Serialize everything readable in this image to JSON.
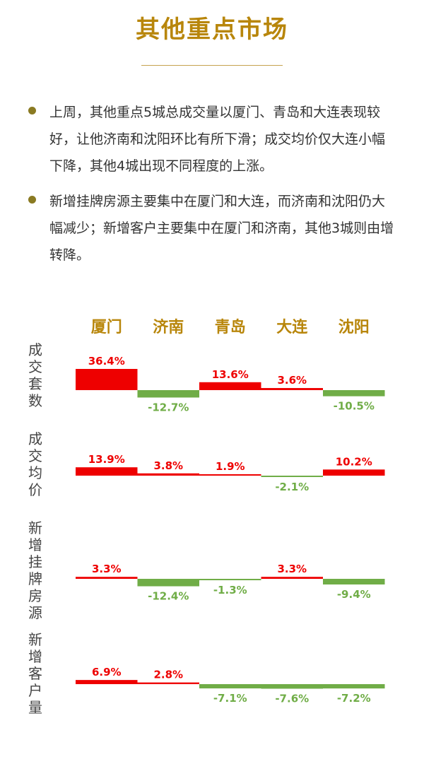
{
  "page": {
    "title": "其他重点市场",
    "bullets": [
      "上周，其他重点5城总成交量以厦门、青岛和大连表现较好，让他济南和沈阳环比有所下滑；成交均价仅大连小幅下降，其他4城出现不同程度的上涨。",
      "新增挂牌房源主要集中在厦门和大连，而济南和沈阳仍大幅减少；新增客户主要集中在厦门和济南，其他3城则由增转降。"
    ]
  },
  "colors": {
    "title": "#B8860B",
    "positive": "#EE0000",
    "negative": "#70AD47",
    "bullet_dot": "#8A7A22"
  },
  "chart_data": {
    "type": "bar",
    "categories": [
      "厦门",
      "济南",
      "青岛",
      "大连",
      "沈阳"
    ],
    "series": [
      {
        "name": "成交套数",
        "values": [
          36.4,
          -12.7,
          13.6,
          3.6,
          -10.5
        ],
        "labels": [
          "36.4%",
          "-12.7%",
          "13.6%",
          "3.6%",
          "-10.5%"
        ]
      },
      {
        "name": "成交均价",
        "values": [
          13.9,
          3.8,
          1.9,
          -2.1,
          10.2
        ],
        "labels": [
          "13.9%",
          "3.8%",
          "1.9%",
          "-2.1%",
          "10.2%"
        ]
      },
      {
        "name": "新增挂牌房源",
        "values": [
          3.3,
          -12.4,
          -1.3,
          3.3,
          -9.4
        ],
        "labels": [
          "3.3%",
          "-12.4%",
          "-1.3%",
          "3.3%",
          "-9.4%"
        ]
      },
      {
        "name": "新增客户量",
        "values": [
          6.9,
          2.8,
          -7.1,
          -7.6,
          -7.2
        ],
        "labels": [
          "6.9%",
          "2.8%",
          "-7.1%",
          "-7.6%",
          "-7.2%"
        ]
      }
    ],
    "unit": "%",
    "legend": "none",
    "grid": false
  }
}
